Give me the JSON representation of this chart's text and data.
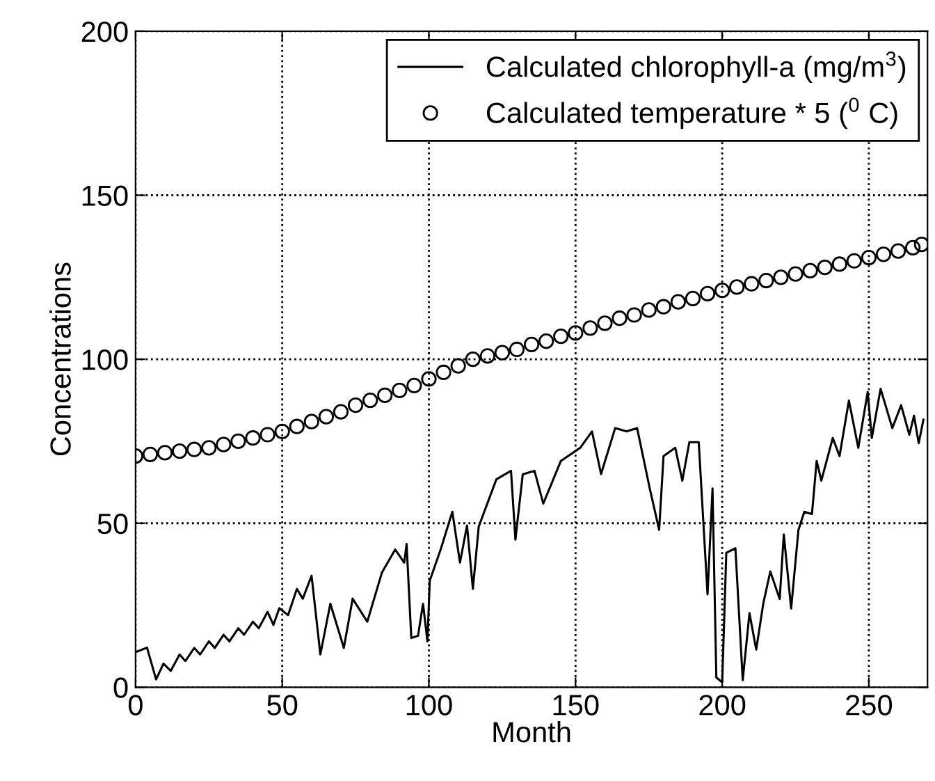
{
  "chart_data": {
    "type": "line",
    "xlabel": "Month",
    "ylabel": "Concentrations",
    "xlim": [
      0,
      270
    ],
    "ylim": [
      0,
      200
    ],
    "xticks": [
      0,
      50,
      100,
      150,
      200,
      250
    ],
    "yticks": [
      0,
      50,
      100,
      150,
      200
    ],
    "grid": true,
    "legend": "top right",
    "series": [
      {
        "name": "Calculated chlorophyll-a (mg/m$^{3}$)",
        "color": "#000000",
        "line_style": "solid",
        "marker": "none",
        "x": [
          0,
          3.9,
          7,
          9.5,
          12,
          15,
          17,
          20,
          22,
          25,
          27,
          30,
          32,
          35,
          37,
          40,
          42,
          45,
          47,
          49,
          52,
          55,
          57,
          60,
          63,
          66.4,
          71,
          74,
          79,
          84,
          88.5,
          91.6,
          92.4,
          94,
          96.3,
          98,
          99.5,
          100.3,
          104,
          108,
          110.6,
          113,
          115,
          117,
          123,
          128,
          129.5,
          132,
          136,
          139,
          145,
          151.6,
          155.6,
          158.7,
          163.5,
          167.4,
          171,
          175.3,
          178.5,
          180,
          184,
          186.4,
          188.8,
          192,
          195,
          196.7,
          198,
          200,
          201.4,
          204.5,
          207,
          209.3,
          211.6,
          214,
          216.4,
          219.6,
          221,
          223.5,
          226,
          228,
          230.6,
          232.2,
          233.8,
          237.7,
          240,
          243.2,
          246.4,
          249.6,
          251,
          254,
          258,
          261,
          263.8,
          265.4,
          267,
          268.6
        ],
        "values": [
          10.7,
          12.1,
          2.4,
          7.2,
          5,
          10,
          8,
          12,
          10,
          14,
          12,
          16,
          14,
          18,
          16,
          20,
          18,
          23,
          19,
          24.1,
          22,
          30,
          27,
          34,
          10,
          25.5,
          12,
          27,
          20,
          35,
          42,
          38,
          43.7,
          15,
          15.7,
          25.5,
          14,
          32.5,
          42,
          53.5,
          38,
          49.3,
          30,
          49,
          63.4,
          66,
          45,
          64.9,
          66,
          56,
          69,
          73,
          78,
          65,
          79,
          78,
          79,
          60.6,
          48,
          70.5,
          73,
          63,
          74.7,
          74.7,
          28.3,
          60.6,
          3,
          1.5,
          41,
          42.4,
          2.2,
          22.6,
          11.5,
          25.5,
          35.3,
          26.9,
          46.6,
          24,
          48,
          53.5,
          52.8,
          69,
          63,
          76,
          70.5,
          87.4,
          73,
          90,
          76,
          91,
          79,
          86,
          77,
          82.8,
          74.4,
          81.6
        ]
      },
      {
        "name": "Calculated temperature * 5 ($^{0}$ C)",
        "type": "scatter",
        "color": "#000000",
        "marker": "circle",
        "x": [
          0,
          5,
          10,
          15,
          20,
          25,
          30,
          35,
          40,
          45,
          50,
          55,
          60,
          65,
          70,
          75,
          80,
          85,
          90,
          95,
          100,
          105,
          110,
          115,
          120,
          125,
          130,
          135,
          140,
          145,
          150,
          155,
          160,
          165,
          170,
          175,
          180,
          185,
          190,
          195,
          200,
          205,
          210,
          215,
          220,
          225,
          230,
          235,
          240,
          245,
          250,
          255,
          260,
          265,
          268
        ],
        "values": [
          70.5,
          71,
          71.5,
          72,
          72.5,
          73,
          74,
          75,
          76,
          77,
          78,
          79.5,
          81,
          82.5,
          84,
          86,
          87.5,
          89,
          90.5,
          92,
          94,
          96,
          98,
          100,
          101,
          102,
          103,
          104.5,
          105.5,
          107,
          108,
          109.5,
          111,
          112.5,
          113.5,
          115,
          116,
          117.5,
          118.5,
          120,
          121,
          122,
          123,
          124,
          125,
          126,
          127,
          128,
          129,
          130,
          131,
          132,
          133,
          134,
          135
        ]
      }
    ]
  }
}
